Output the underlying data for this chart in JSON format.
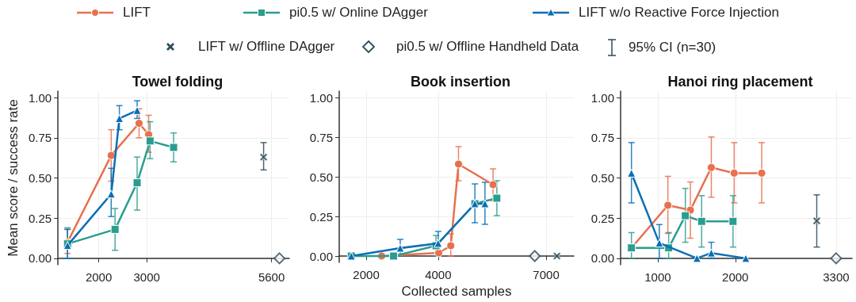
{
  "chart_data": [
    {
      "type": "line",
      "title": "Towel folding",
      "ylabel": "Mean score / success rate",
      "legend": "top",
      "grid": true,
      "annotations": [
        "95% CI (n=30)"
      ],
      "xlim": [
        1150,
        5970
      ],
      "xticks": [
        2000,
        3000,
        5600
      ],
      "ylim": [
        -0.04,
        1.04
      ],
      "yticks": [
        {
          "value": 0,
          "label": "0.00"
        },
        {
          "value": 0.25,
          "label": "0.25"
        },
        {
          "value": 0.5,
          "label": "0.50"
        },
        {
          "value": 0.75,
          "label": "0.75"
        },
        {
          "value": 1,
          "label": "1.00"
        }
      ],
      "series": [
        {
          "name": "LIFT",
          "color": "#e8704f",
          "marker": "circle",
          "x": [
            1350,
            2260,
            2840,
            3040
          ],
          "values": [
            0.1,
            0.64,
            0.84,
            0.77
          ],
          "errors": [
            [
              0.03,
              0.18
            ],
            [
              0.48,
              0.8
            ],
            [
              0.75,
              0.93
            ],
            [
              0.66,
              0.89
            ]
          ]
        },
        {
          "name": "pi0.5 w/ Online DAgger",
          "color": "#2a9d8f",
          "marker": "square",
          "x": [
            1350,
            2340,
            2800,
            3070,
            3560
          ],
          "values": [
            0.09,
            0.18,
            0.47,
            0.73,
            0.69
          ],
          "errors": [
            [
              0,
              0.19
            ],
            [
              0.05,
              0.31
            ],
            [
              0.3,
              0.63
            ],
            [
              0.62,
              0.85
            ],
            [
              0.6,
              0.78
            ]
          ]
        },
        {
          "name": "LIFT w/o Reactive Force Injection",
          "color": "#0a6fb5",
          "marker": "triangle",
          "x": [
            1350,
            2260,
            2430,
            2800
          ],
          "values": [
            0.08,
            0.4,
            0.87,
            0.92
          ],
          "errors": [
            [
              0,
              0.18
            ],
            [
              0.26,
              0.56
            ],
            [
              0.8,
              0.95
            ],
            [
              0.87,
              0.98
            ]
          ]
        },
        {
          "name": "LIFT w/ Offline DAgger",
          "type": "scatter",
          "color": "#2d4a5a",
          "marker": "cross",
          "x": [
            5435
          ],
          "values": [
            0.63
          ],
          "errors": [
            [
              0.55,
              0.72
            ]
          ]
        },
        {
          "name": "pi0.5 w/ Offline Handheld Data",
          "type": "scatter",
          "color": "#2d4a5a",
          "marker": "diamond",
          "x": [
            5765
          ],
          "values": [
            0
          ]
        }
      ]
    },
    {
      "type": "line",
      "title": "Book insertion",
      "xlabel": "Collected samples",
      "grid": true,
      "xlim": [
        1250,
        7770
      ],
      "xticks": [
        2000,
        4000,
        7000
      ],
      "ylim": [
        -0.04,
        1.04
      ],
      "yticks": [
        {
          "value": 0,
          "label": "0.00"
        },
        {
          "value": 0.25,
          "label": "0.25"
        },
        {
          "value": 0.5,
          "label": "0.50"
        },
        {
          "value": 0.75,
          "label": "0.75"
        },
        {
          "value": 1,
          "label": "1.00"
        }
      ],
      "series": [
        {
          "name": "LIFT",
          "color": "#e8704f",
          "marker": "circle",
          "x": [
            2430,
            4015,
            4350,
            4565,
            5525
          ],
          "values": [
            0,
            0.02,
            0.065,
            0.58,
            0.45
          ],
          "errors": [
            null,
            null,
            [
              0,
              0.14
            ],
            [
              0.475,
              0.69
            ],
            [
              0.35,
              0.55
            ]
          ]
        },
        {
          "name": "pi0.5 w/ Online DAgger",
          "color": "#2a9d8f",
          "marker": "square",
          "x": [
            1585,
            2760,
            3940,
            5020,
            5630
          ],
          "values": [
            0,
            0,
            0.065,
            0.33,
            0.365
          ],
          "errors": [
            null,
            null,
            [
              0,
              0.13
            ],
            null,
            [
              0.255,
              0.475
            ]
          ]
        },
        {
          "name": "LIFT w/o Reactive Force Injection",
          "color": "#0a6fb5",
          "marker": "triangle",
          "x": [
            1585,
            2945,
            4000,
            5020,
            5300
          ],
          "values": [
            0,
            0.05,
            0.08,
            0.33,
            0.33
          ],
          "errors": [
            null,
            [
              0,
              0.105
            ],
            [
              0,
              0.155
            ],
            [
              0.21,
              0.455
            ],
            [
              0.2,
              0.465
            ]
          ]
        },
        {
          "type": "scatter",
          "color": "#2d4a5a",
          "marker": "diamond",
          "x": [
            6685
          ],
          "values": [
            0
          ]
        },
        {
          "type": "scatter",
          "color": "#2d4a5a",
          "marker": "cross",
          "x": [
            7300
          ],
          "values": [
            0
          ]
        }
      ]
    },
    {
      "type": "line",
      "title": "Hanoi ring placement",
      "grid": true,
      "xlim": [
        520,
        3505
      ],
      "xticks": [
        1000,
        2000,
        3300
      ],
      "ylim": [
        -0.04,
        1.04
      ],
      "yticks": [
        {
          "value": 0,
          "label": "0.00"
        },
        {
          "value": 0.25,
          "label": "0.25"
        },
        {
          "value": 0.5,
          "label": "0.50"
        },
        {
          "value": 0.75,
          "label": "0.75"
        },
        {
          "value": 1,
          "label": "1.00"
        }
      ],
      "series": [
        {
          "name": "LIFT",
          "color": "#e8704f",
          "marker": "circle",
          "x": [
            660,
            1130,
            1420,
            1690,
            1985,
            2340
          ],
          "values": [
            0.065,
            0.33,
            0.3,
            0.565,
            0.53,
            0.53
          ],
          "errors": [
            null,
            [
              0.155,
              0.51
            ],
            [
              0.125,
              0.475
            ],
            [
              0.38,
              0.755
            ],
            [
              0.345,
              0.72
            ],
            [
              0.345,
              0.72
            ]
          ]
        },
        {
          "name": "pi0.5 w/ Online DAgger",
          "color": "#2a9d8f",
          "marker": "square",
          "x": [
            660,
            1140,
            1355,
            1565,
            1970
          ],
          "values": [
            0.065,
            0.065,
            0.265,
            0.23,
            0.23
          ],
          "errors": [
            [
              0,
              0.16
            ],
            [
              0,
              0.16
            ],
            [
              0.1,
              0.435
            ],
            [
              0.07,
              0.39
            ],
            [
              0.07,
              0.39
            ]
          ]
        },
        {
          "name": "LIFT w/o Reactive Force Injection",
          "color": "#0a6fb5",
          "marker": "triangle",
          "x": [
            660,
            1020,
            1505,
            1690,
            2135
          ],
          "values": [
            0.53,
            0.095,
            0,
            0.033,
            0
          ],
          "errors": [
            [
              0.345,
              0.72
            ],
            [
              0,
              0.21
            ],
            null,
            [
              0,
              0.1
            ],
            null
          ]
        },
        {
          "type": "scatter",
          "color": "#2d4a5a",
          "marker": "cross",
          "x": [
            3050
          ],
          "values": [
            0.233
          ],
          "errors": [
            [
              0.07,
              0.395
            ]
          ]
        },
        {
          "type": "scatter",
          "color": "#2d4a5a",
          "marker": "diamond",
          "x": [
            3300
          ],
          "values": [
            0
          ]
        }
      ]
    }
  ]
}
